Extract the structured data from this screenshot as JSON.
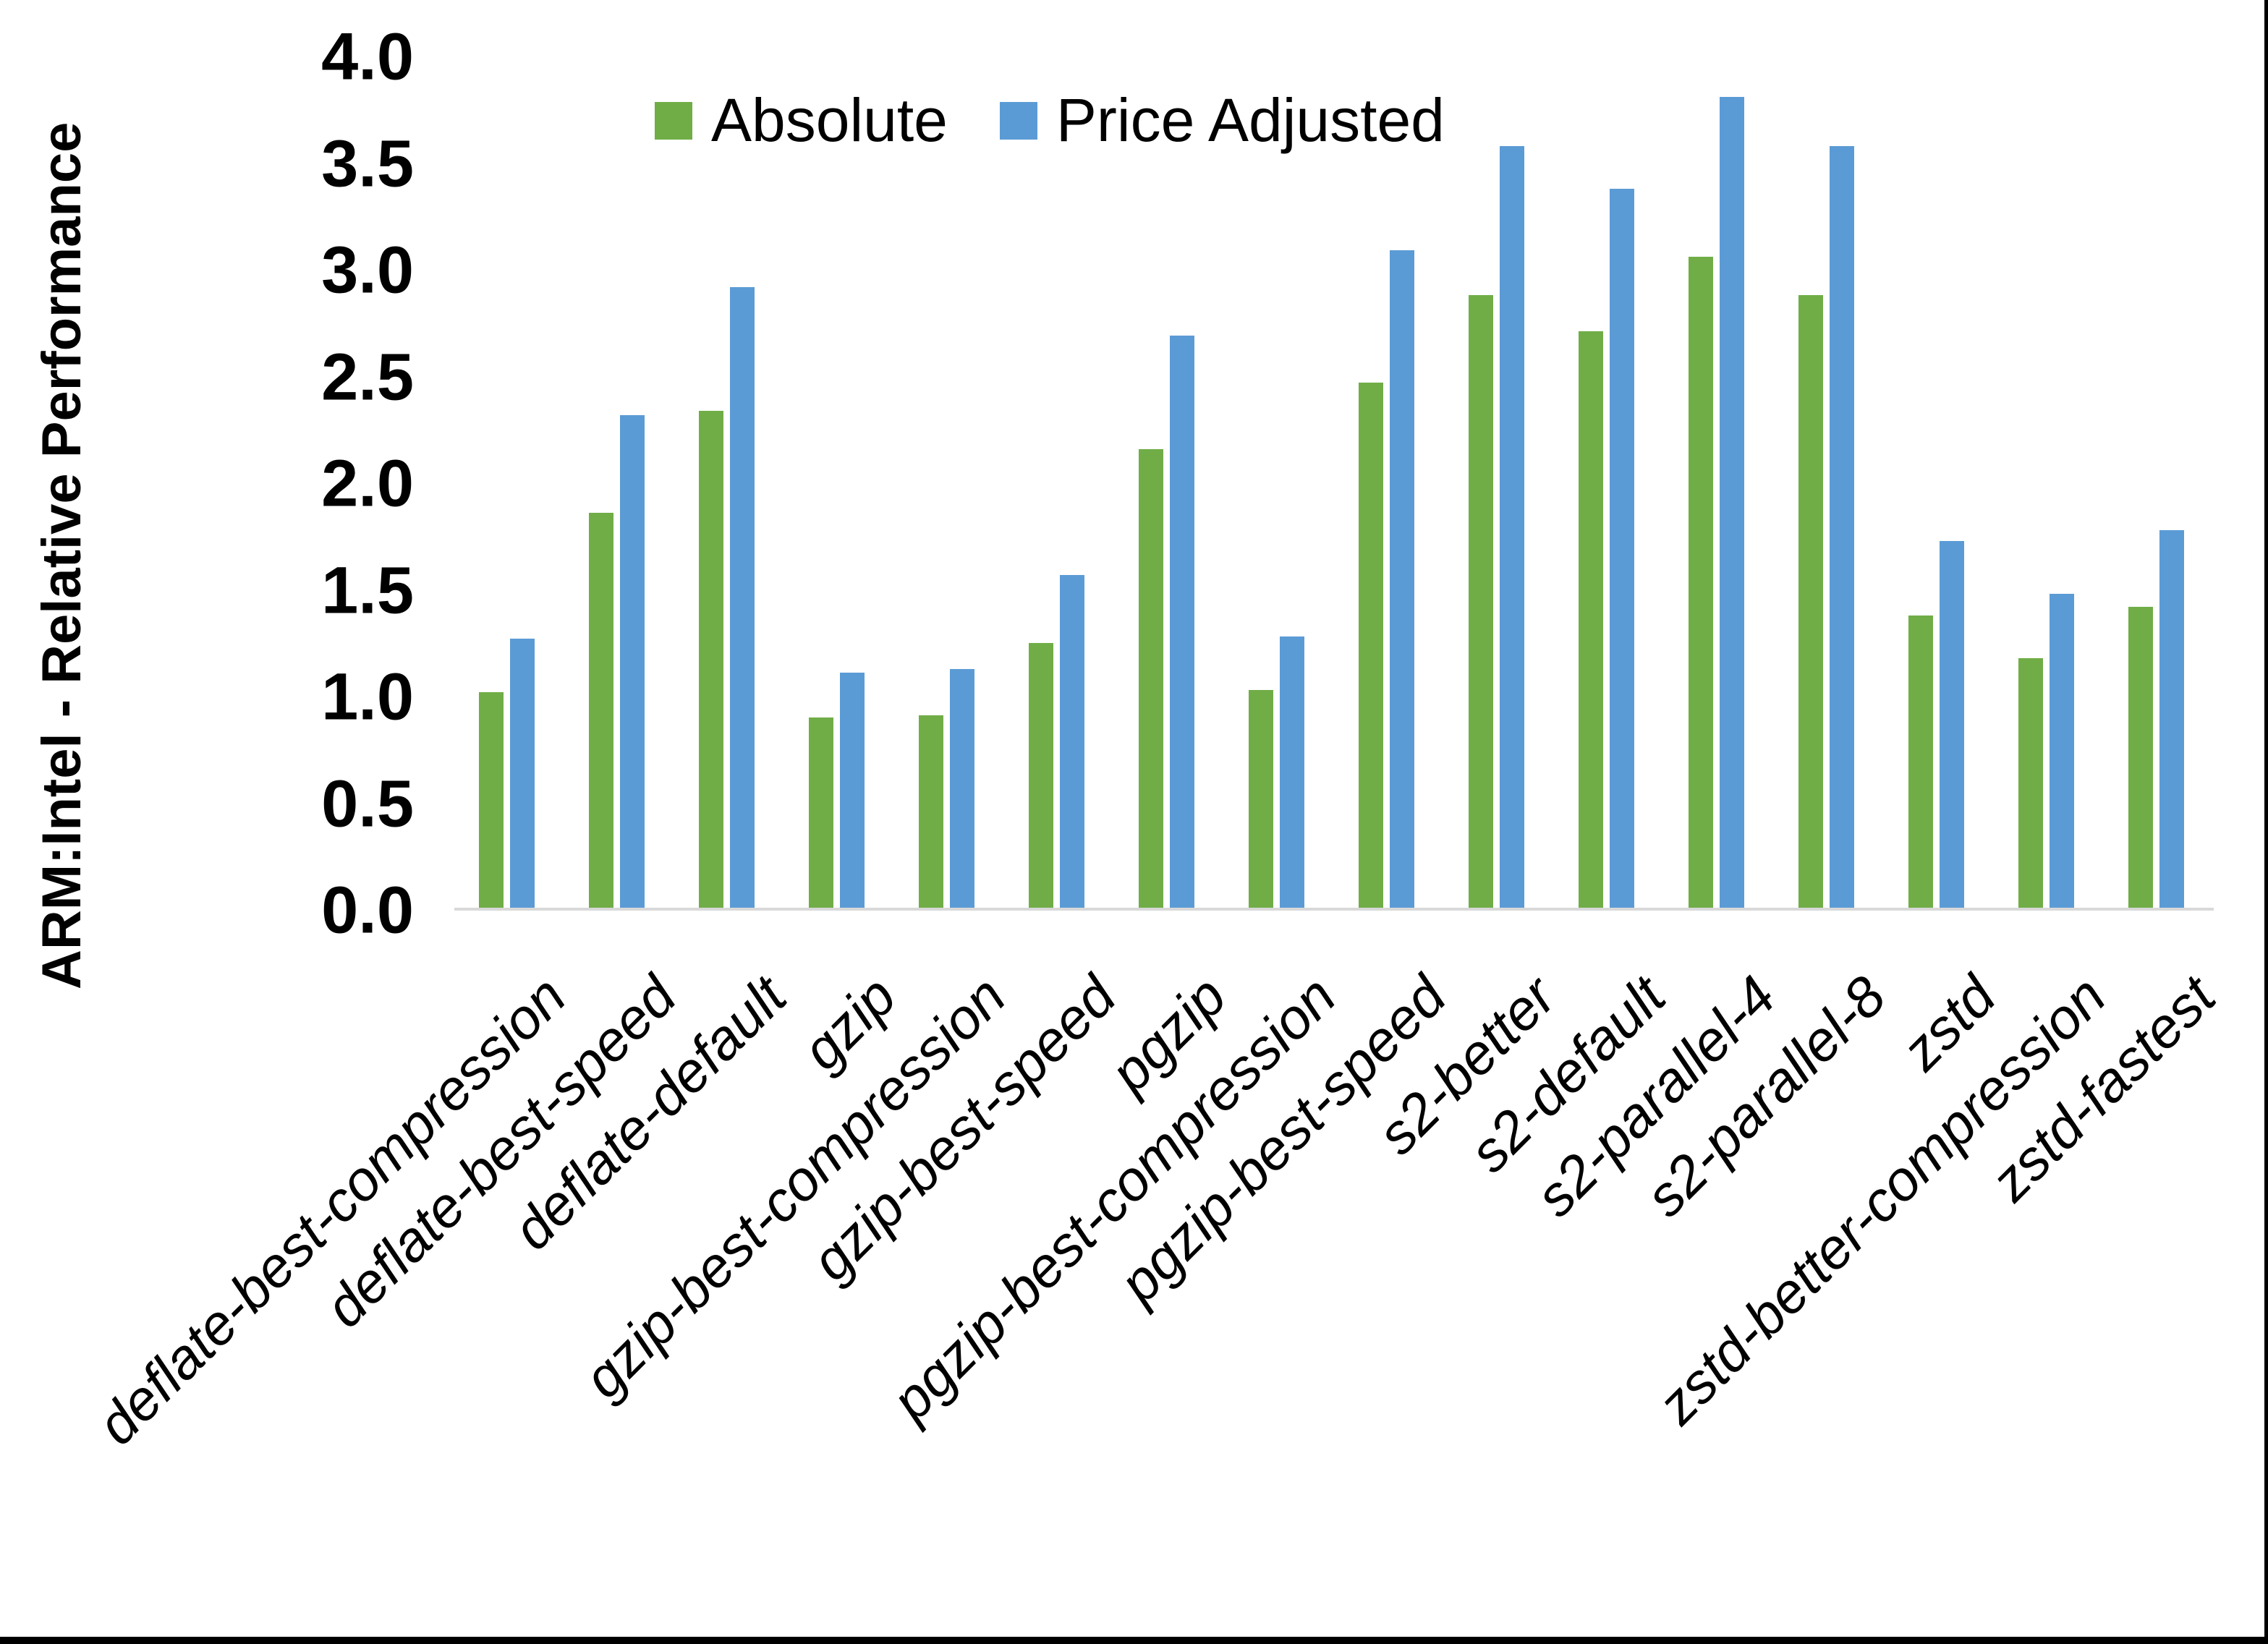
{
  "chart_data": {
    "type": "bar",
    "title": "",
    "ylabel": "ARM:Intel - Relative Performance",
    "xlabel": "",
    "ylim": [
      0.0,
      4.0
    ],
    "ytick_step": 0.5,
    "ytick_labels": [
      "4.0",
      "3.5",
      "3.0",
      "2.5",
      "2.0",
      "1.5",
      "1.0",
      "0.5",
      "0.0"
    ],
    "grid": false,
    "legend_position": "top",
    "categories": [
      "deflate-best-compression",
      "deflate-best-speed",
      "deflate-default",
      "gzip",
      "gzip-best-compression",
      "gzip-best-speed",
      "pgzip",
      "pgzip-best-compression",
      "pgzip-best-speed",
      "s2-better",
      "s2-default",
      "s2-parallel-4",
      "s2-parallel-8",
      "zstd",
      "zstd-better-compression",
      "zstd-fastest"
    ],
    "series": [
      {
        "name": "Absolute",
        "color": "#70AD47",
        "values": [
          1.01,
          1.85,
          2.33,
          0.89,
          0.9,
          1.24,
          2.15,
          1.02,
          2.46,
          2.87,
          2.7,
          3.05,
          2.87,
          1.37,
          1.17,
          1.41
        ]
      },
      {
        "name": "Price Adjusted",
        "color": "#5B9BD5",
        "values": [
          1.26,
          2.31,
          2.91,
          1.1,
          1.12,
          1.56,
          2.68,
          1.27,
          3.08,
          3.57,
          3.37,
          3.8,
          3.57,
          1.72,
          1.47,
          1.77
        ]
      }
    ],
    "axis_line_color": "#d9d9d9"
  },
  "legend": {
    "items": [
      {
        "label": "Absolute",
        "color": "#70AD47"
      },
      {
        "label": "Price Adjusted",
        "color": "#5B9BD5"
      }
    ]
  }
}
